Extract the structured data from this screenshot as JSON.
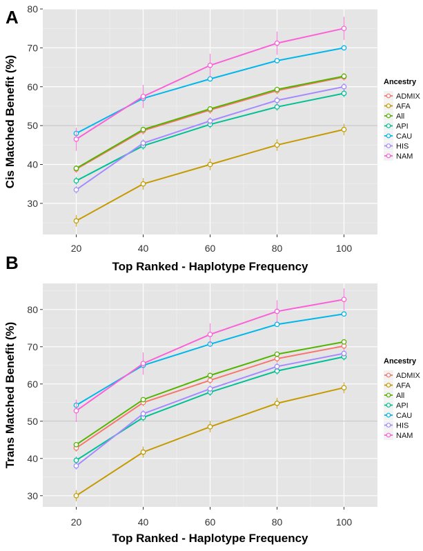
{
  "chart_data": [
    {
      "panel": "A",
      "type": "line",
      "xlabel": "Top Ranked - Haplotype Frequency",
      "ylabel": "Cis Matched Benefit (%)",
      "x": [
        20,
        40,
        60,
        80,
        100
      ],
      "xticks": [
        "20",
        "40",
        "60",
        "80",
        "100"
      ],
      "ylim": [
        22,
        80
      ],
      "yticks": [
        30,
        40,
        50,
        60,
        70,
        80
      ],
      "hline": 50,
      "grid": true,
      "legend_title": "Ancestry",
      "legend_position": "right",
      "series": [
        {
          "name": "ADMIX",
          "color": "#F8766D",
          "values": [
            38.8,
            48.7,
            54.0,
            59.0,
            62.5
          ],
          "err": [
            1.0,
            1.0,
            1.0,
            1.0,
            1.0
          ]
        },
        {
          "name": "AFA",
          "color": "#C49A00",
          "values": [
            25.5,
            35.0,
            40.0,
            45.0,
            49.0
          ],
          "err": [
            1.5,
            1.5,
            1.5,
            1.5,
            1.5
          ]
        },
        {
          "name": "All",
          "color": "#53B400",
          "values": [
            39.0,
            49.0,
            54.3,
            59.3,
            62.7
          ],
          "err": [
            0.5,
            0.5,
            0.5,
            0.5,
            0.5
          ]
        },
        {
          "name": "API",
          "color": "#00C094",
          "values": [
            35.8,
            44.8,
            50.3,
            54.8,
            58.3
          ],
          "err": [
            1.0,
            1.0,
            1.0,
            1.0,
            1.0
          ]
        },
        {
          "name": "CAU",
          "color": "#00B6EB",
          "values": [
            48.0,
            57.0,
            62.0,
            66.7,
            70.0
          ],
          "err": [
            0.5,
            0.5,
            0.5,
            0.5,
            0.5
          ]
        },
        {
          "name": "HIS",
          "color": "#A58AFF",
          "values": [
            33.5,
            45.5,
            51.2,
            56.5,
            60.0
          ],
          "err": [
            1.0,
            1.0,
            1.0,
            1.0,
            1.0
          ]
        },
        {
          "name": "NAM",
          "color": "#FB61D7",
          "values": [
            46.5,
            57.5,
            65.5,
            71.2,
            75.0
          ],
          "err": [
            3.0,
            3.0,
            3.0,
            3.0,
            3.0
          ]
        }
      ]
    },
    {
      "panel": "B",
      "type": "line",
      "xlabel": "Top Ranked - Haplotype Frequency",
      "ylabel": "Trans Matched Benefit (%)",
      "x": [
        20,
        40,
        60,
        80,
        100
      ],
      "xticks": [
        "20",
        "40",
        "60",
        "80",
        "100"
      ],
      "ylim": [
        27,
        87
      ],
      "yticks": [
        30,
        40,
        50,
        60,
        70,
        80
      ],
      "hline": 50,
      "grid": true,
      "legend_title": "Ancestry",
      "legend_position": "right",
      "series": [
        {
          "name": "ADMIX",
          "color": "#F8766D",
          "values": [
            42.8,
            55.0,
            61.0,
            66.8,
            70.2
          ],
          "err": [
            1.0,
            1.0,
            1.0,
            1.0,
            1.0
          ]
        },
        {
          "name": "AFA",
          "color": "#C49A00",
          "values": [
            30.0,
            41.7,
            48.5,
            54.8,
            59.0
          ],
          "err": [
            1.5,
            1.5,
            1.5,
            1.5,
            1.5
          ]
        },
        {
          "name": "All",
          "color": "#53B400",
          "values": [
            43.7,
            55.8,
            62.3,
            68.0,
            71.3
          ],
          "err": [
            0.5,
            0.5,
            0.5,
            0.5,
            0.5
          ]
        },
        {
          "name": "API",
          "color": "#00C094",
          "values": [
            39.5,
            51.0,
            57.8,
            63.5,
            67.3
          ],
          "err": [
            1.0,
            1.0,
            1.0,
            1.0,
            1.0
          ]
        },
        {
          "name": "CAU",
          "color": "#00B6EB",
          "values": [
            54.3,
            65.0,
            70.7,
            76.0,
            78.8
          ],
          "err": [
            0.5,
            0.5,
            0.5,
            0.5,
            0.5
          ]
        },
        {
          "name": "HIS",
          "color": "#A58AFF",
          "values": [
            38.0,
            52.0,
            58.7,
            64.7,
            68.2
          ],
          "err": [
            1.0,
            1.0,
            1.0,
            1.0,
            1.0
          ]
        },
        {
          "name": "NAM",
          "color": "#FB61D7",
          "values": [
            52.8,
            65.5,
            73.3,
            79.5,
            82.7
          ],
          "err": [
            3.0,
            3.0,
            3.0,
            3.0,
            3.0
          ]
        }
      ]
    }
  ]
}
